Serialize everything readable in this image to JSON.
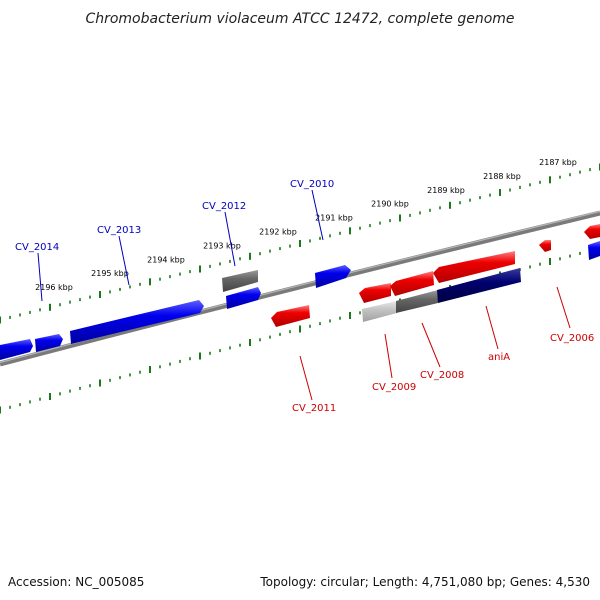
{
  "title": "Chromobacterium violaceum ATCC 12472, complete genome",
  "footer": {
    "accession": "Accession: NC_005085",
    "summary": "Topology: circular; Length: 4,751,080 bp; Genes: 4,530"
  },
  "colors": {
    "forward": "#0000ee",
    "reverse": "#ee0000",
    "forward_label": "#0000bb",
    "reverse_label": "#cc0000",
    "grey": "#666666",
    "navy": "#000070",
    "ticks": "#1a7a1a",
    "backbone": "#888888"
  },
  "scale_labels": [
    "2187 kbp",
    "2188 kbp",
    "2189 kbp",
    "2190 kbp",
    "2191 kbp",
    "2192 kbp",
    "2193 kbp",
    "2194 kbp",
    "2195 kbp",
    "2196 kbp"
  ],
  "genes": [
    {
      "name": "CV_2006",
      "strand": "reverse"
    },
    {
      "name": "aniA",
      "strand": "reverse"
    },
    {
      "name": "CV_2008",
      "strand": "reverse"
    },
    {
      "name": "CV_2009",
      "strand": "reverse"
    },
    {
      "name": "CV_2010",
      "strand": "forward"
    },
    {
      "name": "CV_2011",
      "strand": "reverse"
    },
    {
      "name": "CV_2012",
      "strand": "forward"
    },
    {
      "name": "CV_2013",
      "strand": "forward"
    },
    {
      "name": "CV_2014",
      "strand": "forward"
    }
  ]
}
